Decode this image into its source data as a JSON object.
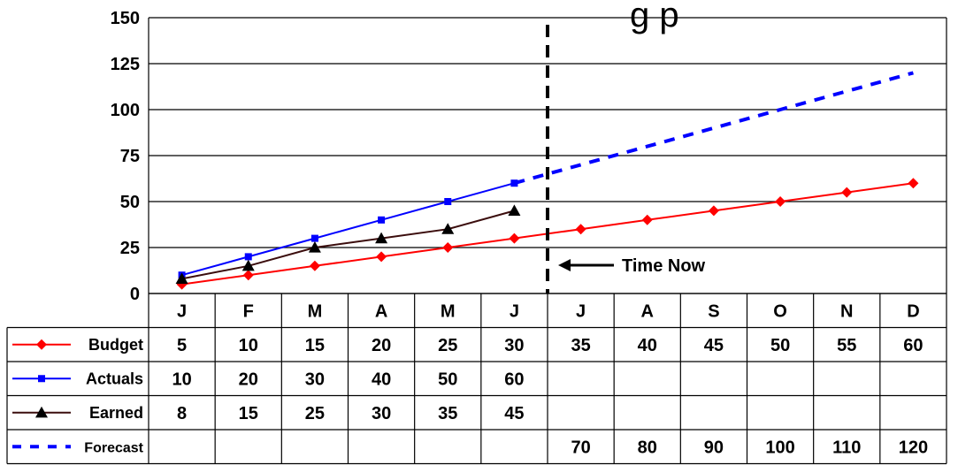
{
  "chart_data": {
    "type": "line",
    "title": "",
    "xlabel": "",
    "ylabel": "",
    "ylim": [
      0,
      150
    ],
    "yticks": [
      0,
      25,
      50,
      75,
      100,
      125,
      150
    ],
    "grid": true,
    "title_fragment": "g p",
    "categories": [
      "J",
      "F",
      "M",
      "A",
      "M",
      "J",
      "J",
      "A",
      "S",
      "O",
      "N",
      "D"
    ],
    "series": [
      {
        "name": "Budget",
        "color": "#ff0000",
        "marker": "diamond",
        "dash": false,
        "values": [
          5,
          10,
          15,
          20,
          25,
          30,
          35,
          40,
          45,
          50,
          55,
          60
        ]
      },
      {
        "name": "Actuals",
        "color": "#0000ff",
        "marker": "square",
        "dash": false,
        "values": [
          10,
          20,
          30,
          40,
          50,
          60,
          null,
          null,
          null,
          null,
          null,
          null
        ]
      },
      {
        "name": "Earned",
        "color": "#000000",
        "line_color": "#3b0d0d",
        "marker": "triangle",
        "dash": false,
        "values": [
          8,
          15,
          25,
          30,
          35,
          45,
          null,
          null,
          null,
          null,
          null,
          null
        ]
      },
      {
        "name": "Forecast",
        "color": "#0000ff",
        "marker": "none",
        "dash": true,
        "values": [
          null,
          null,
          null,
          null,
          null,
          60,
          70,
          80,
          90,
          100,
          110,
          120
        ]
      }
    ],
    "time_now": {
      "label": "Time Now",
      "after_category_index": 5
    },
    "table": {
      "rows": [
        {
          "label": "Budget",
          "cells": [
            "5",
            "10",
            "15",
            "20",
            "25",
            "30",
            "35",
            "40",
            "45",
            "50",
            "55",
            "60"
          ]
        },
        {
          "label": "Actuals",
          "cells": [
            "10",
            "20",
            "30",
            "40",
            "50",
            "60",
            "",
            "",
            "",
            "",
            "",
            ""
          ]
        },
        {
          "label": "Earned",
          "cells": [
            "8",
            "15",
            "25",
            "30",
            "35",
            "45",
            "",
            "",
            "",
            "",
            "",
            ""
          ]
        },
        {
          "label": "Forecast",
          "cells": [
            "",
            "",
            "",
            "",
            "",
            "",
            "70",
            "80",
            "90",
            "100",
            "110",
            "120"
          ]
        }
      ]
    }
  }
}
